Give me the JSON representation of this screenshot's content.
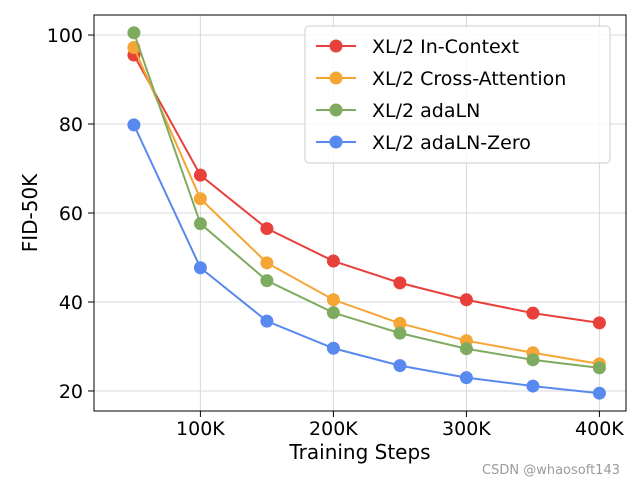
{
  "chart_data": {
    "type": "line",
    "title": "",
    "xlabel": "Training Steps",
    "ylabel": "FID-50K",
    "xlim": [
      20000,
      420000
    ],
    "ylim": [
      15.5,
      104.5
    ],
    "x_ticks": [
      {
        "value": 100000,
        "label": "100K"
      },
      {
        "value": 200000,
        "label": "200K"
      },
      {
        "value": 300000,
        "label": "300K"
      },
      {
        "value": 400000,
        "label": "400K"
      }
    ],
    "y_ticks": [
      {
        "value": 20,
        "label": "20"
      },
      {
        "value": 40,
        "label": "40"
      },
      {
        "value": 60,
        "label": "60"
      },
      {
        "value": 80,
        "label": "80"
      },
      {
        "value": 100,
        "label": "100"
      }
    ],
    "grid": true,
    "legend_position": "top-right",
    "x": [
      50000,
      100000,
      150000,
      200000,
      250000,
      300000,
      350000,
      400000
    ],
    "series": [
      {
        "name": "XL/2 In-Context",
        "color": "#e8413c",
        "values": [
          95.5,
          68.5,
          56.5,
          49.2,
          44.3,
          40.5,
          37.5,
          35.3
        ]
      },
      {
        "name": "XL/2 Cross-Attention",
        "color": "#f5a533",
        "values": [
          97.2,
          63.2,
          48.8,
          40.5,
          35.2,
          31.3,
          28.6,
          26.1
        ]
      },
      {
        "name": "XL/2 adaLN",
        "color": "#7fab61",
        "values": [
          100.5,
          57.6,
          44.8,
          37.6,
          33.0,
          29.5,
          27.0,
          25.2
        ]
      },
      {
        "name": "XL/2 adaLN-Zero",
        "color": "#5889ef",
        "values": [
          79.8,
          47.7,
          35.7,
          29.6,
          25.7,
          23.0,
          21.1,
          19.5
        ]
      }
    ]
  },
  "watermark": "CSDN @whaosoft143"
}
